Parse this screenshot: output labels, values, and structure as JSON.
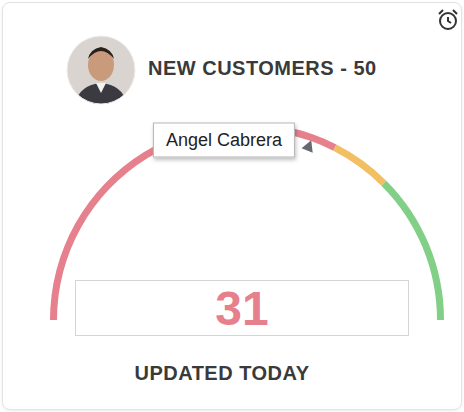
{
  "chart_data": {
    "type": "gauge",
    "title": "NEW CUSTOMERS - 50",
    "subtitle": "UPDATED TODAY",
    "annotation": "Angel Cabrera",
    "value": 31,
    "ylim": [
      0,
      50
    ],
    "bands": [
      {
        "from": 0,
        "to": 32.5,
        "color": "#e6808d"
      },
      {
        "from": 32.5,
        "to": 37.5,
        "color": "#f2c062"
      },
      {
        "from": 37.5,
        "to": 50,
        "color": "#82cf88"
      }
    ]
  }
}
